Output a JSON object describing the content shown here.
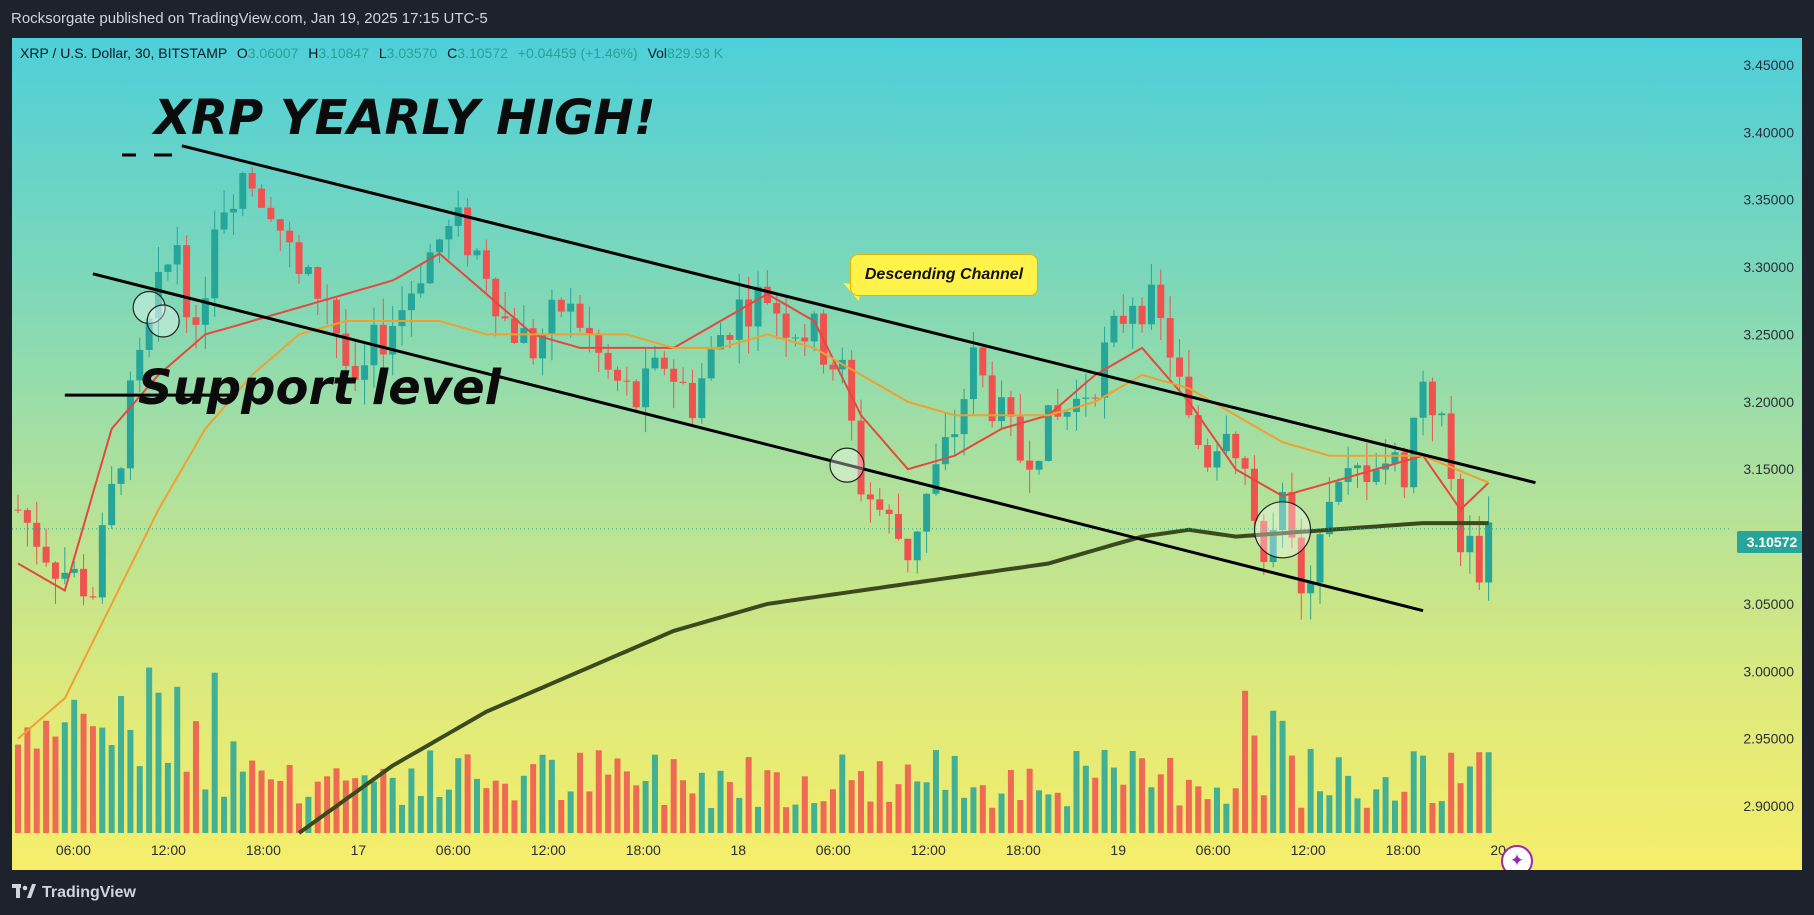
{
  "header": {
    "publisher_line": "Rocksorgate published on TradingView.com, Jan 19, 2025 17:15 UTC-5"
  },
  "legend": {
    "symbol": "XRP / U.S. Dollar, 30, BITSTAMP",
    "o_label": "O",
    "o_value": "3.06007",
    "h_label": "H",
    "h_value": "3.10847",
    "l_label": "L",
    "l_value": "3.03570",
    "c_label": "C",
    "c_value": "3.10572",
    "change": "+0.04459 (+1.46%)",
    "vol_label": "Vol",
    "vol_value": "829.93 K"
  },
  "annotations": {
    "yearly_high": "XRP YEARLY HIGH!",
    "support": "Support level",
    "channel": "Descending Channel"
  },
  "price_badge": "3.10572",
  "footer": {
    "brand": "TradingView"
  },
  "colors": {
    "up": "#26a69a",
    "down": "#ef5350",
    "ma_fast": "#e5483e",
    "ma_mid": "#f0a030",
    "ma_slow": "#3a4a1e"
  },
  "icons": {
    "brand": "tradingview-logo-icon",
    "assistant": "sparkle-icon"
  },
  "chart_data": {
    "type": "candlestick",
    "symbol": "XRP / U.S. Dollar",
    "interval": "30",
    "exchange": "BITSTAMP",
    "y_range": [
      2.88,
      3.47
    ],
    "y_ticks": [
      "3.45000",
      "3.40000",
      "3.35000",
      "3.30000",
      "3.25000",
      "3.20000",
      "3.15000",
      "3.10000",
      "3.05000",
      "3.00000",
      "2.95000",
      "2.90000"
    ],
    "x_ticks": [
      "06:00",
      "12:00",
      "18:00",
      "17",
      "06:00",
      "12:00",
      "18:00",
      "18",
      "06:00",
      "12:00",
      "18:00",
      "19",
      "06:00",
      "12:00",
      "18:00",
      "20"
    ],
    "current_price": 3.10572,
    "anchors": [
      [
        0,
        3.12
      ],
      [
        4,
        3.08
      ],
      [
        8,
        3.06
      ],
      [
        12,
        3.2
      ],
      [
        15,
        3.28
      ],
      [
        17,
        3.32
      ],
      [
        19,
        3.24
      ],
      [
        21,
        3.34
      ],
      [
        24,
        3.37
      ],
      [
        27,
        3.35
      ],
      [
        30,
        3.29
      ],
      [
        33,
        3.28
      ],
      [
        36,
        3.2
      ],
      [
        38,
        3.24
      ],
      [
        41,
        3.27
      ],
      [
        43,
        3.3
      ],
      [
        45,
        3.32
      ],
      [
        47,
        3.33
      ],
      [
        50,
        3.3
      ],
      [
        52,
        3.26
      ],
      [
        55,
        3.24
      ],
      [
        58,
        3.27
      ],
      [
        60,
        3.26
      ],
      [
        63,
        3.22
      ],
      [
        66,
        3.2
      ],
      [
        69,
        3.23
      ],
      [
        72,
        3.2
      ],
      [
        75,
        3.25
      ],
      [
        77,
        3.27
      ],
      [
        80,
        3.28
      ],
      [
        82,
        3.26
      ],
      [
        85,
        3.25
      ],
      [
        88,
        3.22
      ],
      [
        90,
        3.14
      ],
      [
        92,
        3.12
      ],
      [
        95,
        3.09
      ],
      [
        97,
        3.13
      ],
      [
        100,
        3.18
      ],
      [
        102,
        3.23
      ],
      [
        104,
        3.2
      ],
      [
        107,
        3.16
      ],
      [
        110,
        3.18
      ],
      [
        113,
        3.2
      ],
      [
        115,
        3.22
      ],
      [
        117,
        3.25
      ],
      [
        119,
        3.28
      ],
      [
        121,
        3.27
      ],
      [
        123,
        3.24
      ],
      [
        125,
        3.18
      ],
      [
        127,
        3.16
      ],
      [
        129,
        3.19
      ],
      [
        131,
        3.15
      ],
      [
        133,
        3.08
      ],
      [
        135,
        3.12
      ],
      [
        137,
        3.05
      ],
      [
        139,
        3.11
      ],
      [
        142,
        3.14
      ],
      [
        145,
        3.16
      ],
      [
        148,
        3.15
      ],
      [
        150,
        3.22
      ],
      [
        152,
        3.18
      ],
      [
        154,
        3.1
      ],
      [
        156,
        3.08
      ],
      [
        157,
        3.10572
      ]
    ],
    "moving_averages": [
      {
        "key": "fast",
        "anchors": [
          [
            0,
            3.08
          ],
          [
            5,
            3.06
          ],
          [
            10,
            3.18
          ],
          [
            15,
            3.22
          ],
          [
            20,
            3.25
          ],
          [
            25,
            3.26
          ],
          [
            30,
            3.27
          ],
          [
            35,
            3.28
          ],
          [
            40,
            3.29
          ],
          [
            45,
            3.31
          ],
          [
            50,
            3.28
          ],
          [
            55,
            3.25
          ],
          [
            60,
            3.24
          ],
          [
            65,
            3.24
          ],
          [
            70,
            3.24
          ],
          [
            75,
            3.26
          ],
          [
            80,
            3.28
          ],
          [
            85,
            3.26
          ],
          [
            90,
            3.19
          ],
          [
            95,
            3.15
          ],
          [
            100,
            3.16
          ],
          [
            105,
            3.18
          ],
          [
            110,
            3.19
          ],
          [
            115,
            3.22
          ],
          [
            120,
            3.24
          ],
          [
            125,
            3.2
          ],
          [
            130,
            3.15
          ],
          [
            135,
            3.13
          ],
          [
            140,
            3.14
          ],
          [
            145,
            3.15
          ],
          [
            150,
            3.16
          ],
          [
            154,
            3.12
          ],
          [
            157,
            3.14
          ]
        ]
      },
      {
        "key": "mid",
        "anchors": [
          [
            0,
            2.95
          ],
          [
            5,
            2.98
          ],
          [
            10,
            3.05
          ],
          [
            15,
            3.12
          ],
          [
            20,
            3.18
          ],
          [
            25,
            3.22
          ],
          [
            30,
            3.25
          ],
          [
            35,
            3.26
          ],
          [
            40,
            3.26
          ],
          [
            45,
            3.26
          ],
          [
            50,
            3.25
          ],
          [
            55,
            3.25
          ],
          [
            60,
            3.25
          ],
          [
            65,
            3.25
          ],
          [
            70,
            3.24
          ],
          [
            75,
            3.24
          ],
          [
            80,
            3.25
          ],
          [
            85,
            3.24
          ],
          [
            90,
            3.22
          ],
          [
            95,
            3.2
          ],
          [
            100,
            3.19
          ],
          [
            105,
            3.19
          ],
          [
            110,
            3.19
          ],
          [
            115,
            3.2
          ],
          [
            120,
            3.22
          ],
          [
            125,
            3.21
          ],
          [
            130,
            3.19
          ],
          [
            135,
            3.17
          ],
          [
            140,
            3.16
          ],
          [
            145,
            3.16
          ],
          [
            150,
            3.16
          ],
          [
            157,
            3.14
          ]
        ]
      },
      {
        "key": "slow",
        "anchors": [
          [
            30,
            2.88
          ],
          [
            40,
            2.93
          ],
          [
            50,
            2.97
          ],
          [
            60,
            3.0
          ],
          [
            70,
            3.03
          ],
          [
            80,
            3.05
          ],
          [
            90,
            3.06
          ],
          [
            100,
            3.07
          ],
          [
            110,
            3.08
          ],
          [
            115,
            3.09
          ],
          [
            120,
            3.1
          ],
          [
            125,
            3.105
          ],
          [
            130,
            3.1
          ],
          [
            140,
            3.105
          ],
          [
            150,
            3.11
          ],
          [
            157,
            3.11
          ]
        ]
      }
    ],
    "trendlines": [
      {
        "name": "channel-upper",
        "from": [
          17.5,
          3.39
        ],
        "to": [
          162,
          3.14
        ]
      },
      {
        "name": "channel-lower",
        "from": [
          8,
          3.295
        ],
        "to": [
          150,
          3.045
        ]
      },
      {
        "name": "support",
        "from": [
          5,
          3.205
        ],
        "to": [
          23,
          3.205
        ]
      }
    ]
  }
}
